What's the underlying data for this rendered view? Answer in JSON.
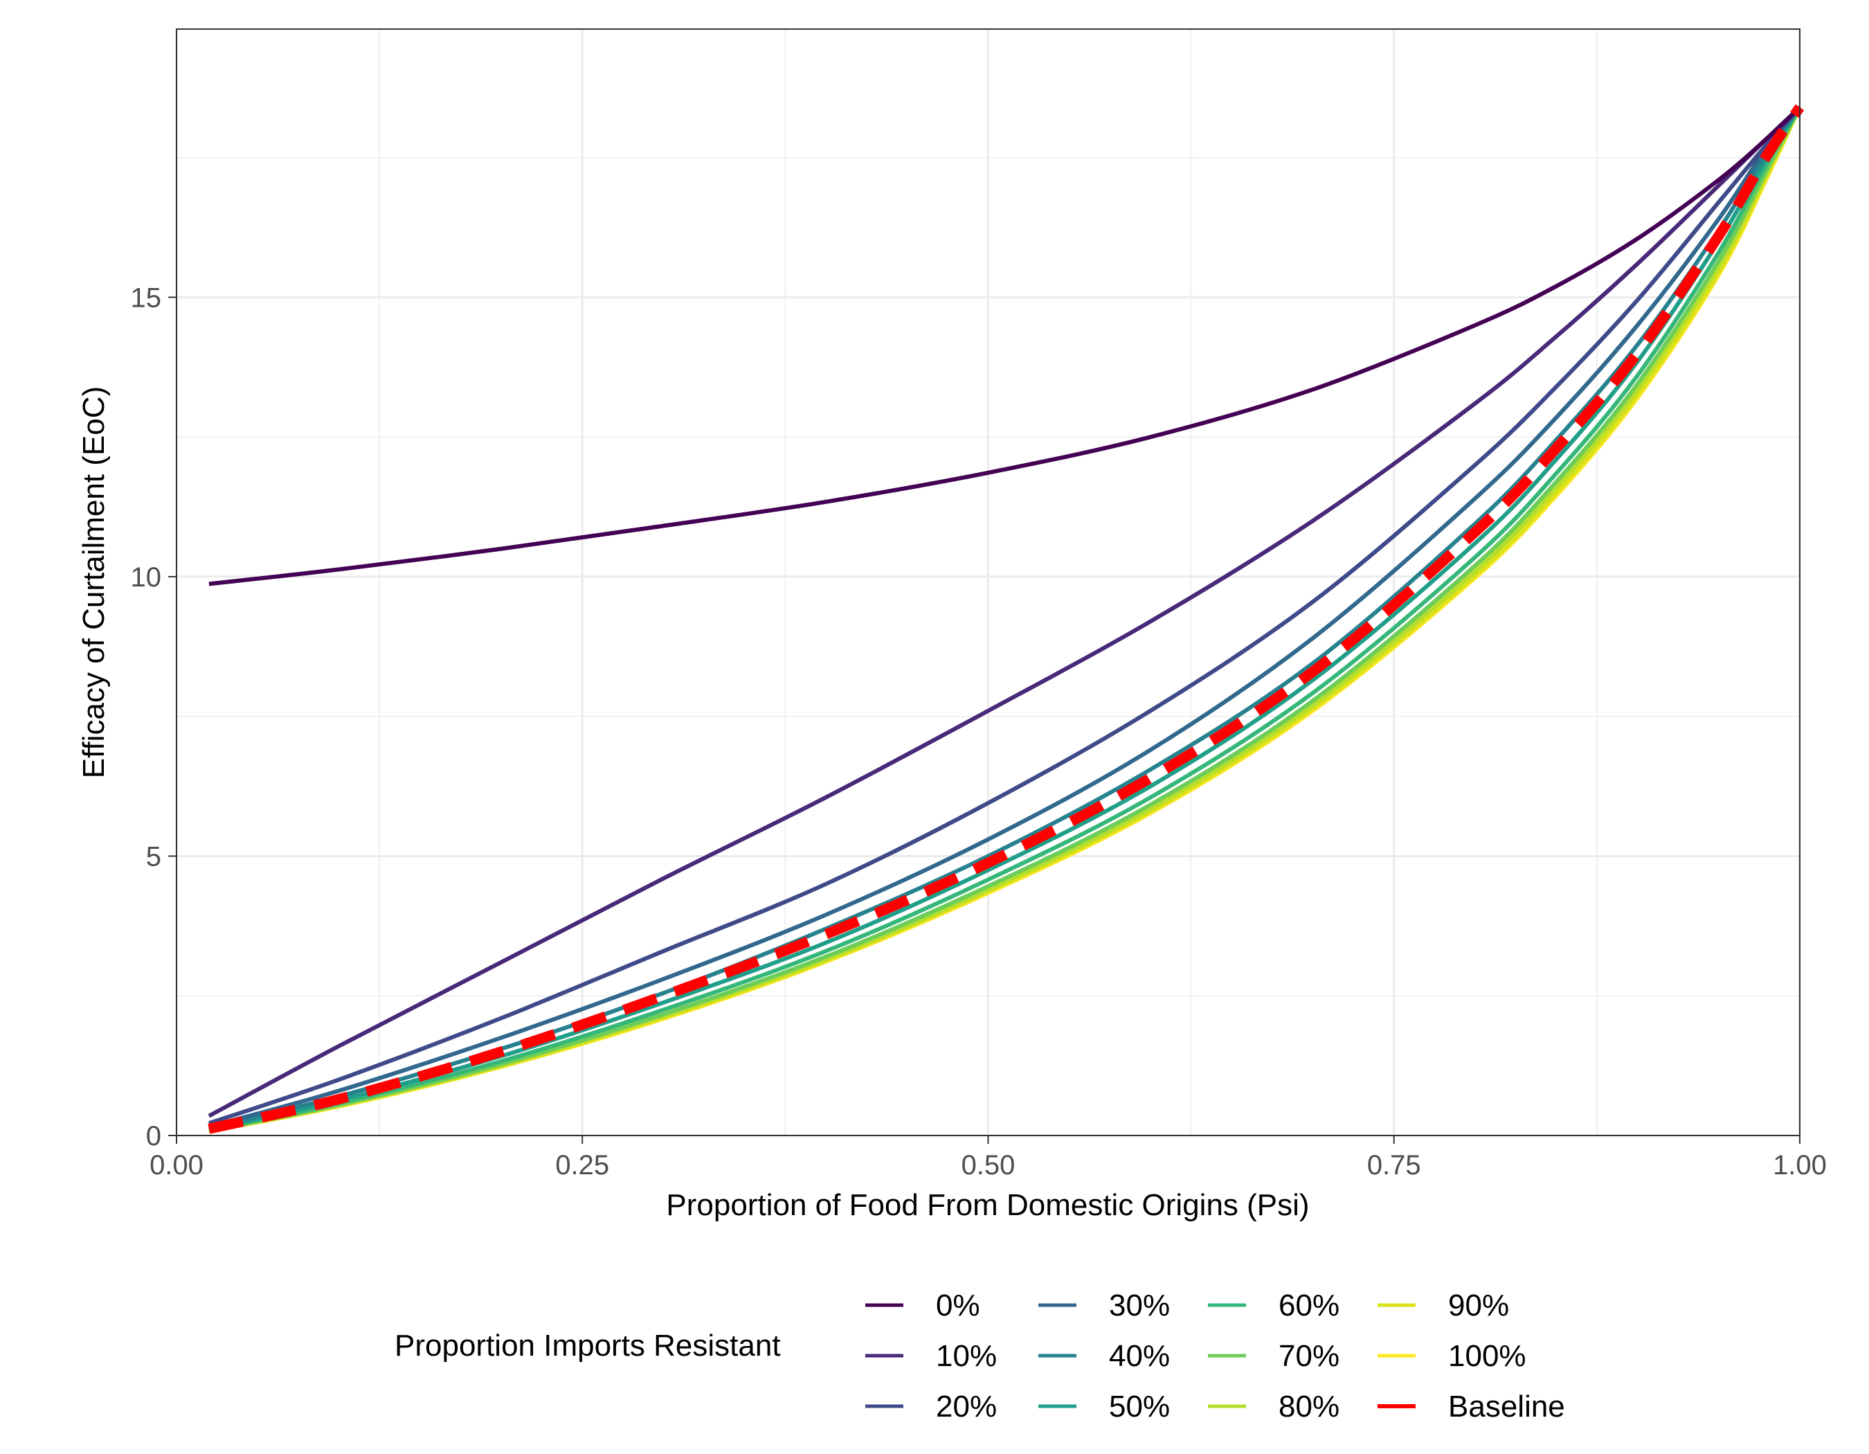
{
  "chart_data": {
    "type": "line",
    "title": "",
    "xlabel": "Proportion of Food From Domestic Origins (Psi)",
    "ylabel": "Efficacy of Curtailment (EoC)",
    "xlim": [
      0,
      1
    ],
    "ylim": [
      0,
      19.8
    ],
    "x_ticks": [
      0,
      0.25,
      0.5,
      0.75,
      1
    ],
    "x_tick_labels": [
      "0.00",
      "0.25",
      "0.50",
      "0.75",
      "1.00"
    ],
    "y_ticks": [
      0,
      5,
      10,
      15
    ],
    "y_tick_labels": [
      "0",
      "5",
      "10",
      "15"
    ],
    "grid": true,
    "legend": {
      "title": "Proportion Imports Resistant",
      "placement": "bottom"
    },
    "x": [
      0.02,
      0.1,
      0.2,
      0.3,
      0.4,
      0.5,
      0.6,
      0.7,
      0.8,
      0.85,
      0.9,
      0.95,
      0.98,
      1.0
    ],
    "series": [
      {
        "name": "0%",
        "color": "#440154",
        "dashed": false,
        "values": [
          9.87,
          10.13,
          10.5,
          10.91,
          11.34,
          11.86,
          12.5,
          13.35,
          14.5,
          15.2,
          16.05,
          17.1,
          17.85,
          18.4
        ]
      },
      {
        "name": "10%",
        "color": "#482878",
        "dashed": false,
        "values": [
          0.35,
          1.6,
          3.1,
          4.6,
          6.05,
          7.6,
          9.2,
          11.0,
          13.1,
          14.3,
          15.6,
          17.0,
          17.85,
          18.4
        ]
      },
      {
        "name": "20%",
        "color": "#3E4A89",
        "dashed": false,
        "values": [
          0.22,
          1.0,
          2.1,
          3.3,
          4.5,
          5.95,
          7.6,
          9.55,
          12.0,
          13.4,
          14.95,
          16.7,
          17.75,
          18.4
        ]
      },
      {
        "name": "30%",
        "color": "#31688E",
        "dashed": false,
        "values": [
          0.16,
          0.8,
          1.75,
          2.8,
          3.95,
          5.3,
          6.9,
          8.9,
          11.4,
          12.85,
          14.5,
          16.4,
          17.7,
          18.4
        ]
      },
      {
        "name": "40%",
        "color": "#26828E",
        "dashed": false,
        "values": [
          0.13,
          0.7,
          1.55,
          2.55,
          3.7,
          5.0,
          6.55,
          8.45,
          10.95,
          12.45,
          14.15,
          16.2,
          17.6,
          18.4
        ]
      },
      {
        "name": "50%",
        "color": "#1F9E89",
        "dashed": false,
        "values": [
          0.11,
          0.63,
          1.42,
          2.38,
          3.45,
          4.75,
          6.25,
          8.15,
          10.6,
          12.1,
          13.85,
          16.0,
          17.5,
          18.4
        ]
      },
      {
        "name": "60%",
        "color": "#35B779",
        "dashed": false,
        "values": [
          0.1,
          0.58,
          1.33,
          2.25,
          3.3,
          4.58,
          6.05,
          7.92,
          10.35,
          11.85,
          13.6,
          15.8,
          17.4,
          18.4
        ]
      },
      {
        "name": "70%",
        "color": "#6DCD59",
        "dashed": false,
        "values": [
          0.09,
          0.55,
          1.28,
          2.17,
          3.2,
          4.46,
          5.92,
          7.78,
          10.2,
          11.7,
          13.45,
          15.65,
          17.3,
          18.4
        ]
      },
      {
        "name": "80%",
        "color": "#B4DE2C",
        "dashed": false,
        "values": [
          0.09,
          0.54,
          1.26,
          2.14,
          3.16,
          4.4,
          5.85,
          7.7,
          10.1,
          11.6,
          13.35,
          15.55,
          17.25,
          18.4
        ]
      },
      {
        "name": "90%",
        "color": "#D9E219",
        "dashed": false,
        "values": [
          0.08,
          0.53,
          1.24,
          2.11,
          3.13,
          4.37,
          5.8,
          7.64,
          10.02,
          11.5,
          13.25,
          15.45,
          17.2,
          18.4
        ]
      },
      {
        "name": "100%",
        "color": "#FDE725",
        "dashed": false,
        "values": [
          0.08,
          0.52,
          1.23,
          2.09,
          3.11,
          4.34,
          5.77,
          7.6,
          9.98,
          11.45,
          13.2,
          15.4,
          17.15,
          18.4
        ]
      },
      {
        "name": "Baseline",
        "color": "#FF0000",
        "dashed": true,
        "values": [
          0.12,
          0.65,
          1.5,
          2.5,
          3.6,
          4.88,
          6.4,
          8.3,
          10.8,
          12.3,
          14.0,
          16.1,
          17.55,
          18.4
        ]
      }
    ]
  }
}
